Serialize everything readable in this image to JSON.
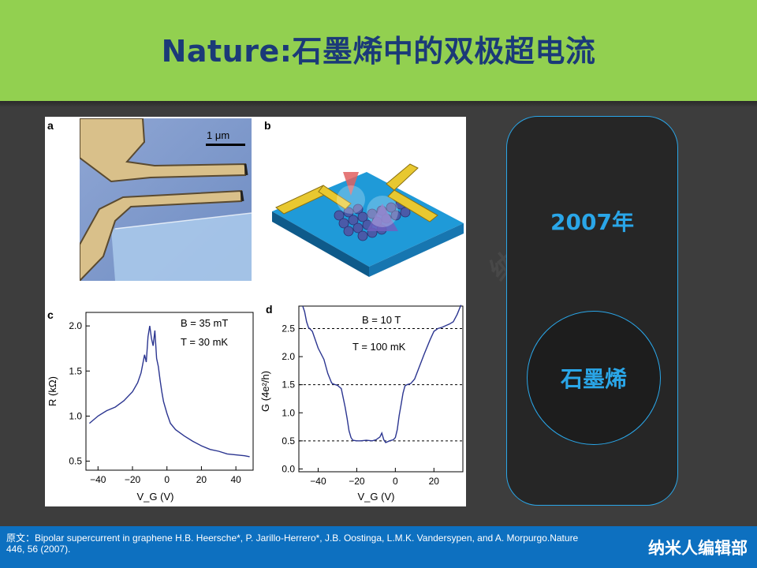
{
  "title": "Nature:石墨烯中的双极超电流",
  "figure": {
    "panels": {
      "a": "a",
      "b": "b",
      "c": "c",
      "d": "d"
    },
    "scale_bar": "1 μm",
    "panel_c": {
      "annotation_b": "B = 35 mT",
      "annotation_t": "T = 30 mK",
      "ylabel": "R (kΩ)",
      "xlabel": "V_G (V)",
      "yticks": [
        "2.0",
        "1.5",
        "1.0",
        "0.5"
      ],
      "xticks": [
        "−40",
        "−20",
        "0",
        "20",
        "40"
      ]
    },
    "panel_d": {
      "annotation_b": "B = 10 T",
      "annotation_t": "T = 100 mK",
      "ylabel": "G (4e²/h)",
      "xlabel": "V_G (V)",
      "yticks": [
        "2.5",
        "2.0",
        "1.5",
        "1.0",
        "0.5",
        "0.0"
      ],
      "xticks": [
        "−40",
        "−20",
        "0",
        "20"
      ]
    }
  },
  "chart_data": [
    {
      "type": "line",
      "panel": "c",
      "xlabel": "V_G (V)",
      "ylabel": "R (kΩ)",
      "xlim": [
        -47,
        50
      ],
      "ylim": [
        0.4,
        2.15
      ],
      "series": [
        {
          "x": [
            -45,
            -40,
            -35,
            -30,
            -25,
            -20,
            -17,
            -15,
            -13,
            -12,
            -11,
            -10,
            -9,
            -8,
            -7,
            -6,
            -5,
            -4,
            -3,
            -2,
            0,
            2,
            5,
            10,
            15,
            20,
            25,
            30,
            35,
            40,
            45,
            48
          ],
          "y": [
            0.92,
            1.0,
            1.06,
            1.1,
            1.17,
            1.27,
            1.37,
            1.48,
            1.68,
            1.6,
            1.88,
            2.0,
            1.86,
            1.78,
            1.95,
            1.64,
            1.55,
            1.4,
            1.27,
            1.16,
            1.03,
            0.92,
            0.85,
            0.78,
            0.72,
            0.67,
            0.63,
            0.61,
            0.58,
            0.57,
            0.56,
            0.55
          ]
        }
      ]
    },
    {
      "type": "line",
      "panel": "d",
      "xlabel": "V_G (V)",
      "ylabel": "G (4e²/h)",
      "xlim": [
        -50,
        35
      ],
      "ylim": [
        -0.05,
        2.9
      ],
      "reference_lines": [
        0.5,
        1.5,
        2.5
      ],
      "series": [
        {
          "x": [
            -48,
            -47,
            -46,
            -45,
            -43,
            -40,
            -37,
            -35,
            -33,
            -32,
            -30,
            -28,
            -26,
            -25,
            -24,
            -23,
            -22,
            -20,
            -18,
            -15,
            -12,
            -10,
            -8,
            -7,
            -6,
            -5,
            -3,
            -1,
            0,
            1,
            2,
            3,
            4,
            5,
            6,
            8,
            10,
            12,
            15,
            18,
            20,
            22,
            24,
            26,
            28,
            30,
            32,
            34
          ],
          "y": [
            2.9,
            2.8,
            2.62,
            2.52,
            2.45,
            2.15,
            1.95,
            1.7,
            1.53,
            1.51,
            1.49,
            1.43,
            1.1,
            0.9,
            0.68,
            0.56,
            0.51,
            0.5,
            0.5,
            0.51,
            0.5,
            0.52,
            0.57,
            0.64,
            0.52,
            0.47,
            0.5,
            0.52,
            0.56,
            0.7,
            0.95,
            1.15,
            1.35,
            1.48,
            1.5,
            1.52,
            1.6,
            1.78,
            2.05,
            2.3,
            2.45,
            2.5,
            2.52,
            2.55,
            2.58,
            2.62,
            2.75,
            2.92
          ]
        }
      ]
    }
  ],
  "side_panel": {
    "year": "2007年",
    "material": "石墨烯"
  },
  "footer": {
    "citation": "原文：Bipolar supercurrent in graphene H.B. Heersche*, P. Jarillo-Herrero*, J.B. Oostinga, L.M.K. Vandersypen, and A. Morpurgo.Nature 446, 56 (2007).",
    "brand": "纳米人编辑部"
  },
  "colors": {
    "header": "#92d050",
    "title": "#1b3a78",
    "accent": "#2aa6e8",
    "footer": "#0d70c0",
    "curve": "#2b3590"
  }
}
